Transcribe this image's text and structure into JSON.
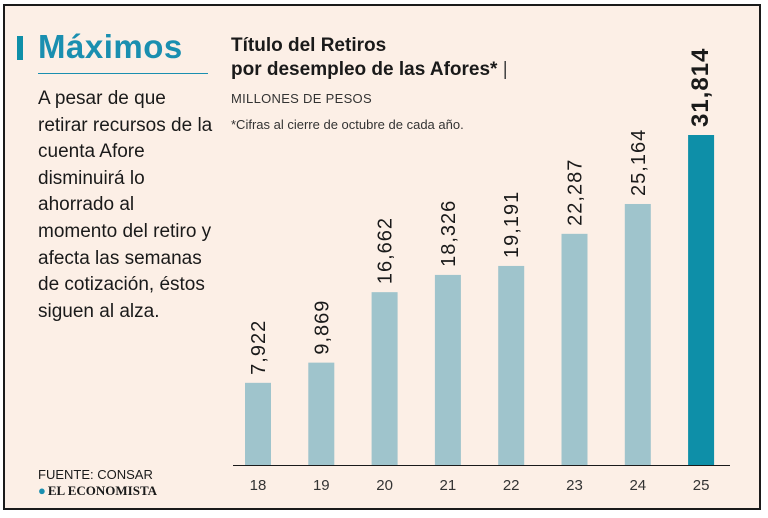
{
  "panel": {
    "title": "Máximos",
    "body": "A pesar de que retirar recursos de la cuenta Afore disminuirá lo ahorrado al momento del retiro y afecta las semanas de cotización, éstos siguen al alza.",
    "source": "FUENTE: CONSAR",
    "logo_text": "EL ECONOMISTA"
  },
  "colors": {
    "background": "#fcefe6",
    "accent": "#1a8fb0",
    "bar": "#9fc4cc",
    "highlight_bar": "#0e8fa8"
  },
  "chart_data": {
    "type": "bar",
    "title_line1": "Título del Retiros",
    "title_line2": "por desempleo de las Afores*",
    "subtitle": "MILLONES DE PESOS",
    "note": "*Cifras al cierre de octubre de cada año.",
    "categories": [
      "18",
      "19",
      "20",
      "21",
      "22",
      "23",
      "24",
      "25"
    ],
    "values": [
      7922,
      9869,
      16662,
      18326,
      19191,
      22287,
      25164,
      31814
    ],
    "value_labels": [
      "7,922",
      "9,869",
      "16,662",
      "18,326",
      "19,191",
      "22,287",
      "25,164",
      "31,814"
    ],
    "highlight_index": 7,
    "ylim": [
      0,
      31814
    ],
    "grid": false,
    "xlabel": "",
    "ylabel": ""
  }
}
